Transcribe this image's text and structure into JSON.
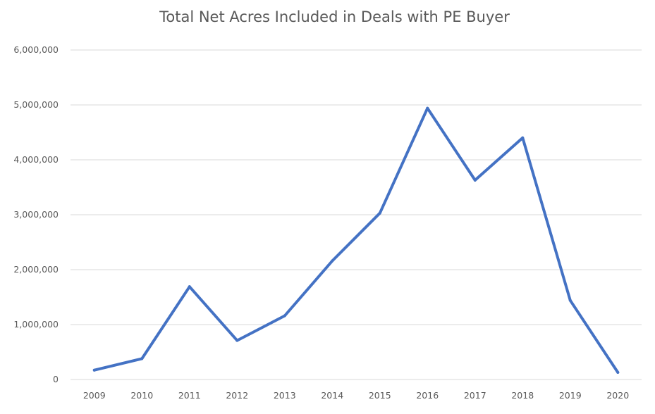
{
  "chart_data": {
    "type": "line",
    "title": "Total Net Acres Included in Deals with PE Buyer",
    "xlabel": "",
    "ylabel": "",
    "categories": [
      "2009",
      "2010",
      "2011",
      "2012",
      "2013",
      "2014",
      "2015",
      "2016",
      "2017",
      "2018",
      "2019",
      "2020"
    ],
    "series": [
      {
        "values": [
          170000,
          380000,
          1690000,
          710000,
          1160000,
          2160000,
          3030000,
          4940000,
          3630000,
          4400000,
          1440000,
          130000
        ],
        "color": "#4472c4"
      }
    ],
    "ylim": [
      0,
      6000000
    ],
    "yticks": [
      0,
      1000000,
      2000000,
      3000000,
      4000000,
      5000000,
      6000000
    ],
    "ytick_labels": [
      "0",
      "1,000,000",
      "2,000,000",
      "3,000,000",
      "4,000,000",
      "5,000,000",
      "6,000,000"
    ],
    "grid": true,
    "legend": "none"
  }
}
